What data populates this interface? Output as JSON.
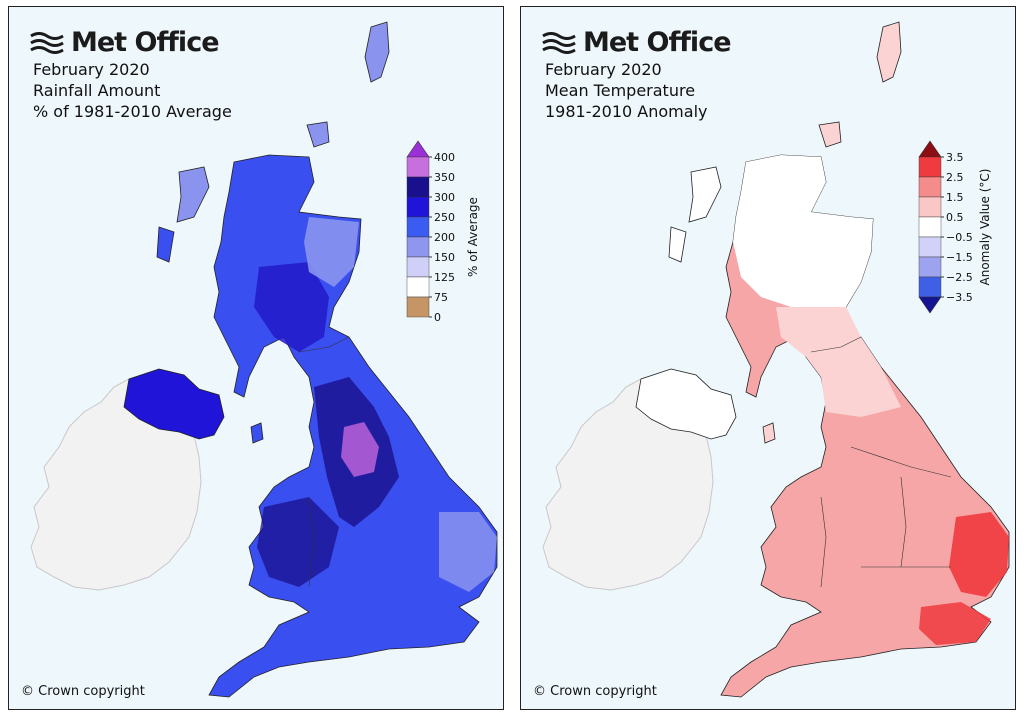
{
  "brand": {
    "logo_text": "Met Office"
  },
  "panels": [
    {
      "id": "rainfall",
      "titles": [
        "February 2020",
        "Rainfall Amount",
        "% of 1981-2010 Average"
      ],
      "copyright": "© Crown copyright",
      "legend": {
        "label": "% of Average",
        "ticks": [
          "400",
          "350",
          "300",
          "250",
          "200",
          "150",
          "125",
          "75",
          "0"
        ],
        "colors": [
          "#c86fe0",
          "#1a0f8c",
          "#1f14d8",
          "#3b5cf0",
          "#8e96ee",
          "#cfcff7",
          "#ffffff",
          "#c69565"
        ],
        "extend_top_color": "#9b30d8"
      }
    },
    {
      "id": "temperature",
      "titles": [
        "February 2020",
        "Mean Temperature",
        "1981-2010 Anomaly"
      ],
      "copyright": "© Crown copyright",
      "legend": {
        "label": "Anomaly Value (°C)",
        "ticks": [
          "3.5",
          "2.5",
          "1.5",
          "0.5",
          "−0.5",
          "−1.5",
          "−2.5",
          "−3.5"
        ],
        "colors": [
          "#ef3a3f",
          "#f48c8c",
          "#fac6c6",
          "#ffffff",
          "#d2d2f8",
          "#9da3ef",
          "#3e5fe6"
        ],
        "extend_top_color": "#8c0d12",
        "extend_bottom_color": "#151494"
      }
    }
  ],
  "colors": {
    "ocean": "#eef7fb",
    "ireland": "#f2f2f2",
    "rain_base": "#3a4ff0",
    "rain_dark": "#2219c8",
    "rain_light": "#8a93ee",
    "rain_purple": "#c467dc",
    "temp_base": "#f6a6a6",
    "temp_light": "#fbd3d3",
    "temp_dark": "#ef3a3f",
    "temp_white": "#ffffff"
  }
}
